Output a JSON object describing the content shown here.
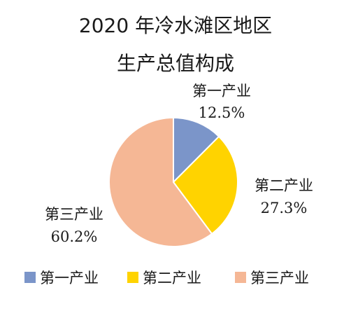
{
  "chart_data": {
    "type": "pie",
    "title": [
      "2020 年冷水滩区地区",
      "生产总值构成"
    ],
    "categories": [
      "第一产业",
      "第二产业",
      "第三产业"
    ],
    "values": [
      12.5,
      27.3,
      60.2
    ],
    "value_labels": [
      "12.5%",
      "27.3%",
      "60.2%"
    ],
    "colors": [
      "#7b95c9",
      "#ffd300",
      "#f5b795"
    ],
    "legend": {
      "placement": "bottom",
      "items": [
        "第一产业",
        "第二产业",
        "第三产业"
      ]
    }
  }
}
